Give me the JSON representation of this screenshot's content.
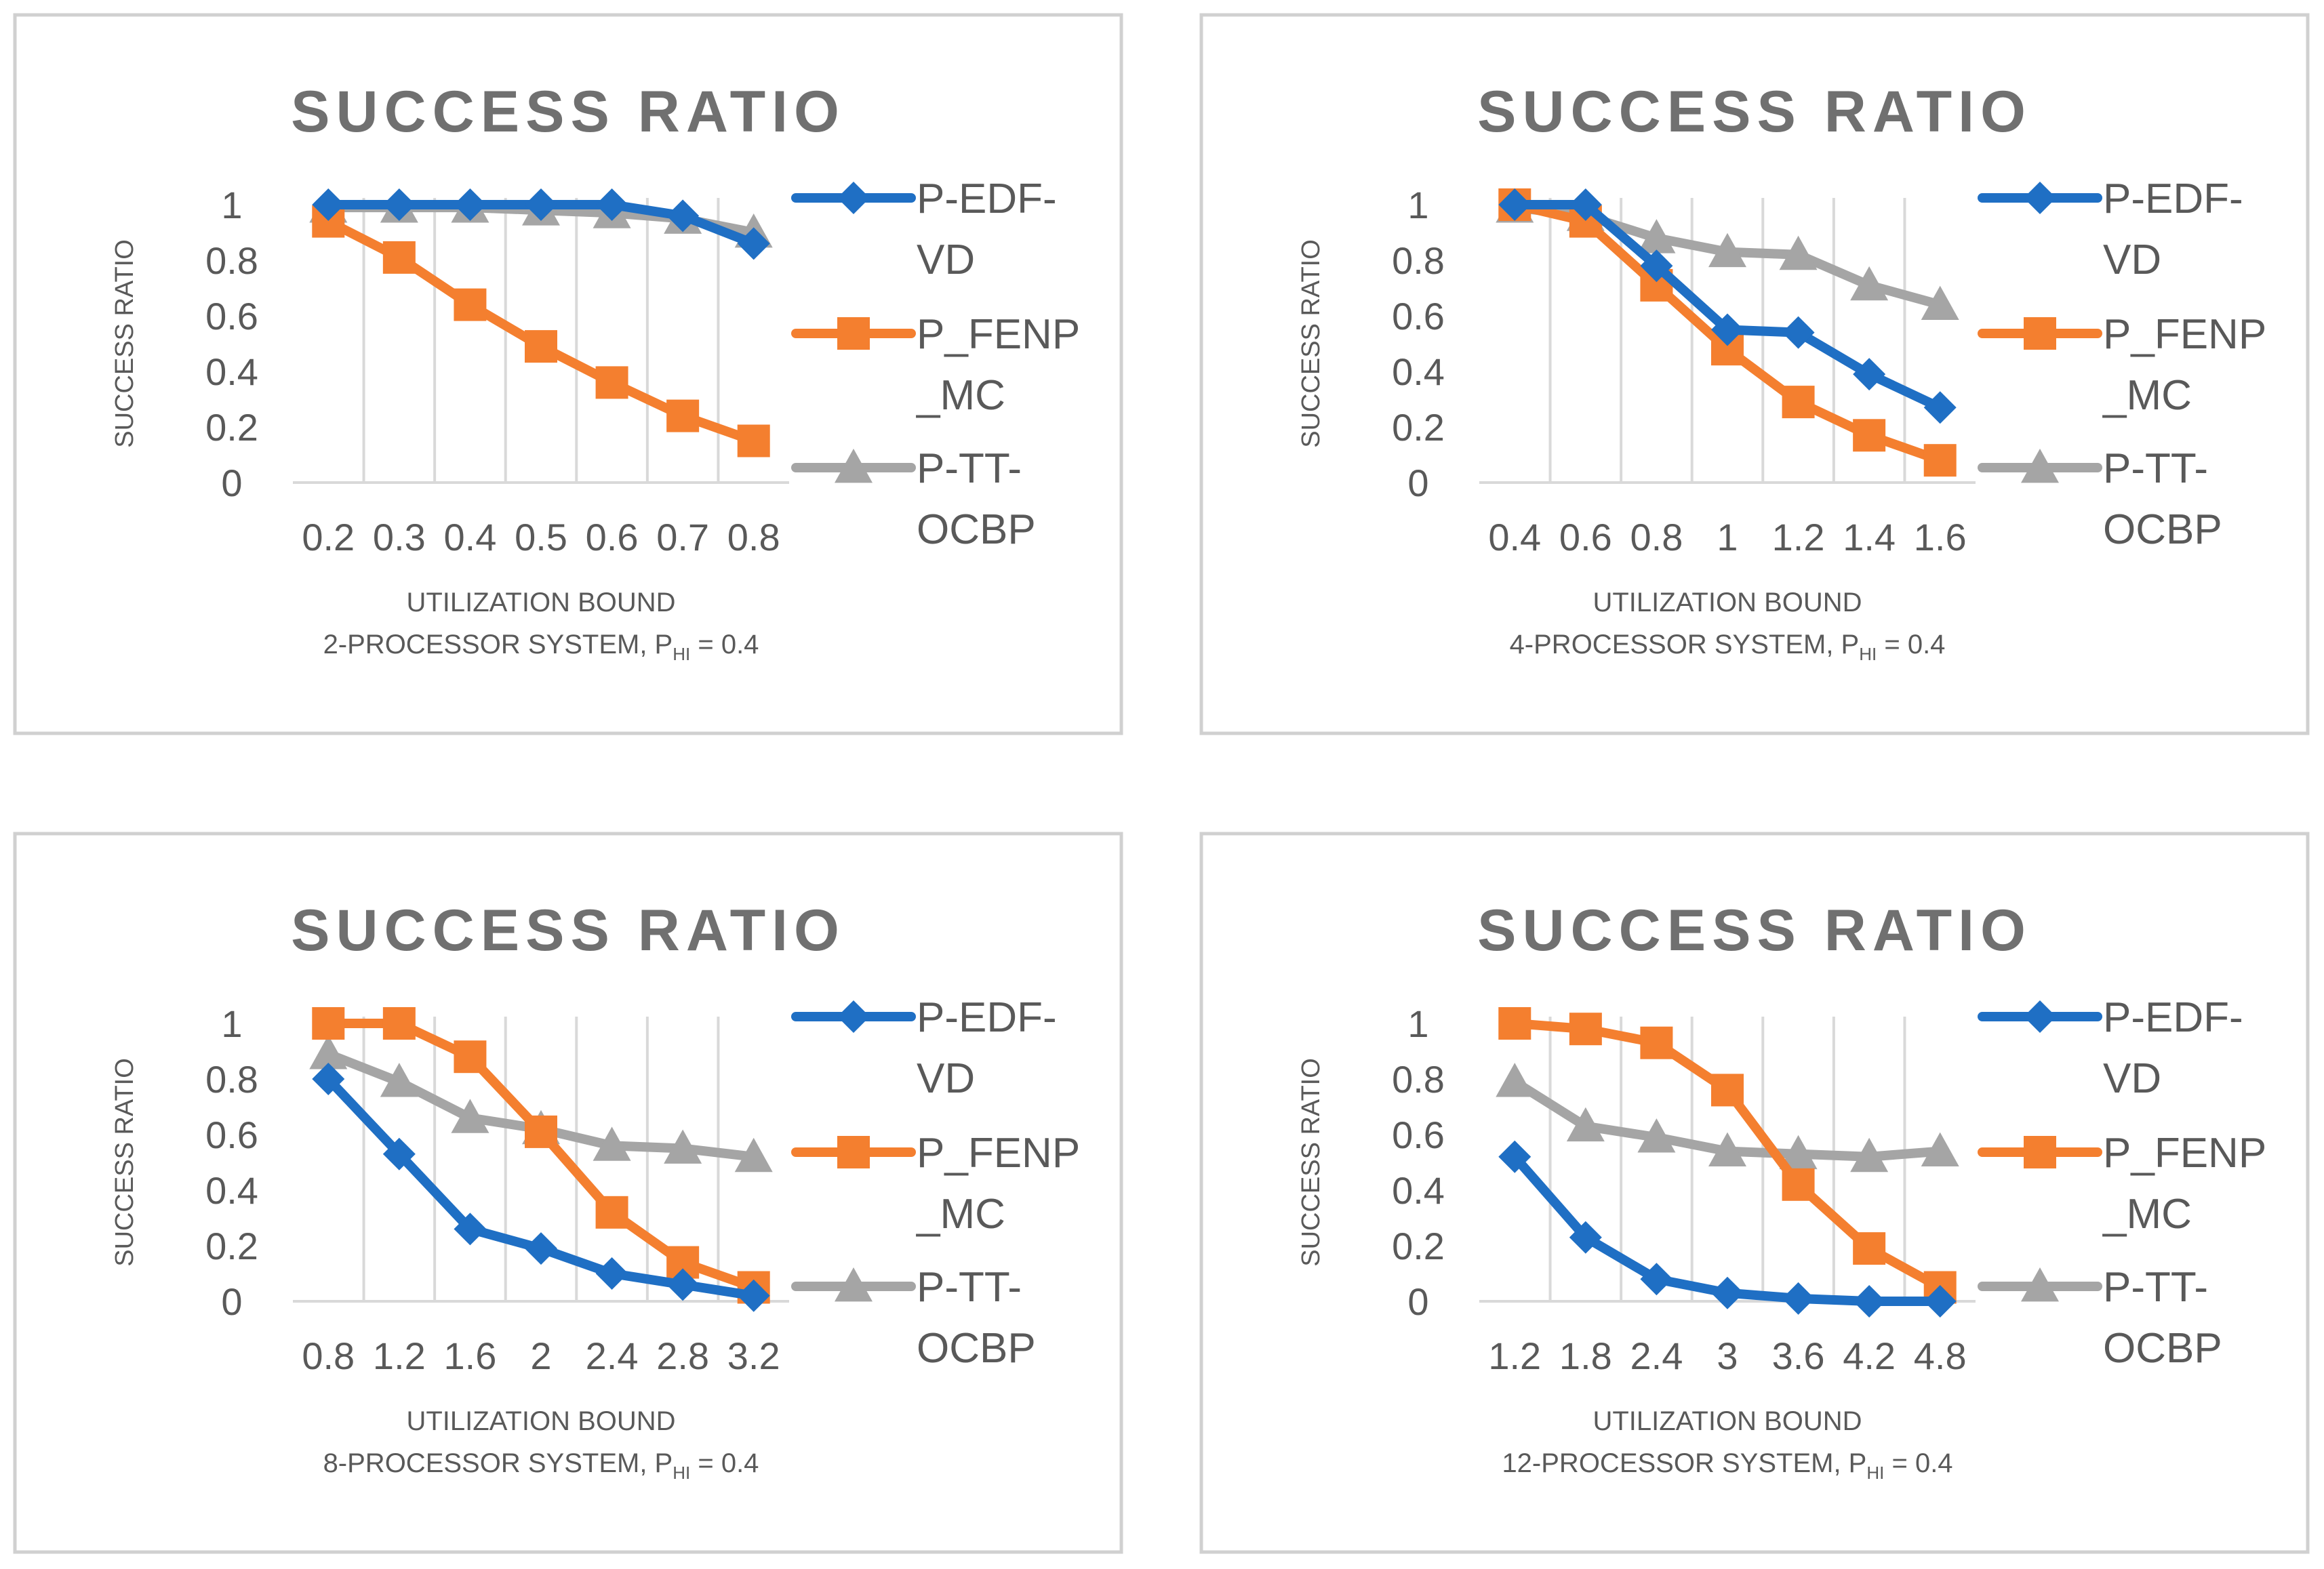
{
  "colors": {
    "P-EDF-VD": "#1f6fc4",
    "P_FENP_MC": "#f47f2f",
    "P-TT-OCBP": "#a5a5a5",
    "frame": "#d0d0d0",
    "grid": "#d9d9d9",
    "text": "#595959",
    "title": "#707070"
  },
  "legend_lines": [
    [
      "P-EDF-",
      "VD"
    ],
    [
      "P_FENP",
      "_MC"
    ],
    [
      "P-TT-",
      "OCBP"
    ]
  ],
  "chart_data": [
    {
      "type": "line",
      "title": "SUCCESS RATIO",
      "ylabel": "SUCCESS RATIO",
      "xlabel": "UTILIZATION BOUND",
      "caption_prefix": "2-PROCESSOR SYSTEM, P",
      "caption_sub": "HI",
      "caption_suffix": " = 0.4",
      "categories": [
        "0.2",
        "0.3",
        "0.4",
        "0.5",
        "0.6",
        "0.7",
        "0.8"
      ],
      "ylim": [
        0,
        1
      ],
      "yticks": [
        "0",
        "0.2",
        "0.4",
        "0.6",
        "0.8",
        "1"
      ],
      "grid": "vertical",
      "legend": "right",
      "series": [
        {
          "name": "P-EDF-VD",
          "marker": "diamond",
          "values": [
            1.0,
            1.0,
            1.0,
            1.0,
            1.0,
            0.96,
            0.86
          ]
        },
        {
          "name": "P_FENP_MC",
          "marker": "square",
          "values": [
            0.94,
            0.81,
            0.64,
            0.49,
            0.36,
            0.24,
            0.15
          ]
        },
        {
          "name": "P-TT-OCBP",
          "marker": "triangle",
          "values": [
            0.99,
            0.99,
            0.99,
            0.98,
            0.97,
            0.95,
            0.9
          ]
        }
      ]
    },
    {
      "type": "line",
      "title": "SUCCESS RATIO",
      "ylabel": "SUCCESS RATIO",
      "xlabel": "UTILIZATION BOUND",
      "caption_prefix": "4-PROCESSOR SYSTEM, P",
      "caption_sub": "HI",
      "caption_suffix": " = 0.4",
      "categories": [
        "0.4",
        "0.6",
        "0.8",
        "1",
        "1.2",
        "1.4",
        "1.6"
      ],
      "ylim": [
        0,
        1
      ],
      "yticks": [
        "0",
        "0.2",
        "0.4",
        "0.6",
        "0.8",
        "1"
      ],
      "grid": "vertical",
      "legend": "right",
      "series": [
        {
          "name": "P-EDF-VD",
          "marker": "diamond",
          "values": [
            1.0,
            1.0,
            0.78,
            0.55,
            0.54,
            0.39,
            0.27
          ]
        },
        {
          "name": "P_FENP_MC",
          "marker": "square",
          "values": [
            1.0,
            0.94,
            0.71,
            0.48,
            0.29,
            0.17,
            0.08
          ]
        },
        {
          "name": "P-TT-OCBP",
          "marker": "triangle",
          "values": [
            0.99,
            0.96,
            0.88,
            0.83,
            0.82,
            0.71,
            0.64
          ]
        }
      ]
    },
    {
      "type": "line",
      "title": "SUCCESS RATIO",
      "ylabel": "SUCCESS RATIO",
      "xlabel": "UTILIZATION BOUND",
      "caption_prefix": "8-PROCESSOR SYSTEM, P",
      "caption_sub": "HI",
      "caption_suffix": " = 0.4",
      "categories": [
        "0.8",
        "1.2",
        "1.6",
        "2",
        "2.4",
        "2.8",
        "3.2"
      ],
      "ylim": [
        0,
        1
      ],
      "yticks": [
        "0",
        "0.2",
        "0.4",
        "0.6",
        "0.8",
        "1"
      ],
      "grid": "vertical",
      "legend": "right",
      "series": [
        {
          "name": "P-EDF-VD",
          "marker": "diamond",
          "values": [
            0.8,
            0.53,
            0.26,
            0.19,
            0.1,
            0.06,
            0.02
          ]
        },
        {
          "name": "P_FENP_MC",
          "marker": "square",
          "values": [
            1.0,
            1.0,
            0.88,
            0.61,
            0.32,
            0.14,
            0.05
          ]
        },
        {
          "name": "P-TT-OCBP",
          "marker": "triangle",
          "values": [
            0.89,
            0.79,
            0.66,
            0.62,
            0.56,
            0.55,
            0.52
          ]
        }
      ]
    },
    {
      "type": "line",
      "title": "SUCCESS RATIO",
      "ylabel": "SUCCESS RATIO",
      "xlabel": "UTILIZATION BOUND",
      "caption_prefix": "12-PROCESSOR SYSTEM, P",
      "caption_sub": "HI",
      "caption_suffix": " = 0.4",
      "categories": [
        "1.2",
        "1.8",
        "2.4",
        "3",
        "3.6",
        "4.2",
        "4.8"
      ],
      "ylim": [
        0,
        1
      ],
      "yticks": [
        "0",
        "0.2",
        "0.4",
        "0.6",
        "0.8",
        "1"
      ],
      "grid": "vertical",
      "legend": "right",
      "series": [
        {
          "name": "P-EDF-VD",
          "marker": "diamond",
          "values": [
            0.52,
            0.23,
            0.08,
            0.03,
            0.01,
            0.0,
            0.0
          ]
        },
        {
          "name": "P_FENP_MC",
          "marker": "square",
          "values": [
            1.0,
            0.98,
            0.93,
            0.76,
            0.42,
            0.19,
            0.05
          ]
        },
        {
          "name": "P-TT-OCBP",
          "marker": "triangle",
          "values": [
            0.79,
            0.63,
            0.59,
            0.54,
            0.53,
            0.52,
            0.54
          ]
        }
      ]
    }
  ]
}
